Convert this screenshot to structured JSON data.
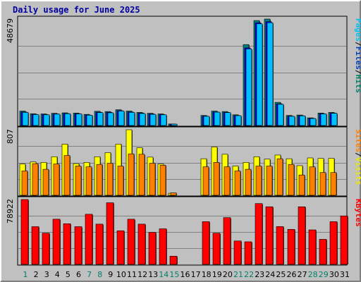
{
  "chart_data": {
    "type": "bar",
    "title": "Daily usage for June 2025",
    "categories": [
      "1",
      "2",
      "3",
      "4",
      "5",
      "6",
      "7",
      "8",
      "9",
      "10",
      "11",
      "12",
      "13",
      "14",
      "15",
      "16",
      "17",
      "18",
      "19",
      "20",
      "21",
      "22",
      "23",
      "24",
      "25",
      "26",
      "27",
      "28",
      "29",
      "30",
      "31"
    ],
    "weekend_days": [
      "1",
      "7",
      "8",
      "14",
      "15",
      "21",
      "22",
      "28",
      "29"
    ],
    "panels": [
      {
        "id": "pages-files-hits",
        "ymax_label": "48679",
        "ymax": 48679,
        "legend_text": [
          "Pages",
          "/",
          "Files",
          "/",
          "Hits"
        ],
        "legend_colors": [
          "#00c0f0",
          "#000000",
          "#0040c0",
          "#000000",
          "#00806a"
        ],
        "series": [
          {
            "name": "Hits",
            "color": "#008080",
            "values": [
              6600,
              5400,
              5300,
              5600,
              5800,
              5700,
              5100,
              6500,
              6400,
              7200,
              6600,
              6000,
              5600,
              5300,
              700,
              0,
              0,
              4600,
              6600,
              6400,
              4900,
              37000,
              48000,
              48679,
              10600,
              4600,
              4800,
              3500,
              5700,
              6000,
              0
            ]
          },
          {
            "name": "Files",
            "color": "#0000ff",
            "values": [
              6200,
              5100,
              5000,
              5300,
              5500,
              5400,
              4800,
              6100,
              6000,
              6800,
              6200,
              5700,
              5300,
              5000,
              600,
              0,
              0,
              4300,
              6200,
              6000,
              4600,
              35500,
              47000,
              47500,
              9900,
              4300,
              4500,
              3300,
              5400,
              5700,
              0
            ]
          },
          {
            "name": "Pages",
            "color": "#00c0ff",
            "values": [
              6000,
              5000,
              4900,
              5200,
              5400,
              5300,
              4700,
              5900,
              5800,
              6600,
              6000,
              5500,
              5100,
              4900,
              500,
              0,
              0,
              4200,
              6100,
              5900,
              4500,
              35000,
              46500,
              47000,
              9700,
              4200,
              4400,
              3200,
              5300,
              5600,
              0
            ]
          }
        ]
      },
      {
        "id": "visits-sites",
        "ymax_label": "807",
        "ymax": 807,
        "legend_text": [
          "Sites",
          "/",
          "Visits"
        ],
        "legend_colors": [
          "#ff8000",
          "#000000",
          "#e8e800"
        ],
        "series": [
          {
            "name": "Visits",
            "color": "#ffff00",
            "values": [
              385,
              410,
              405,
              475,
              630,
              390,
              405,
              475,
              525,
              630,
              807,
              585,
              470,
              385,
              25,
              0,
              0,
              450,
              595,
              505,
              360,
              405,
              475,
              445,
              495,
              450,
              365,
              460,
              455,
              455,
              0
            ]
          },
          {
            "name": "Sites",
            "color": "#ff8000",
            "values": [
              300,
              390,
              320,
              385,
              490,
              360,
              350,
              380,
              395,
              360,
              510,
              505,
              395,
              370,
              30,
              0,
              0,
              350,
              405,
              350,
              300,
              320,
              360,
              360,
              450,
              380,
              250,
              350,
              280,
              280,
              0
            ]
          }
        ]
      },
      {
        "id": "kbytes",
        "ymax_label": "78922",
        "ymax": 78922,
        "legend_text": [
          "KBytes"
        ],
        "legend_colors": [
          "#ff0000"
        ],
        "series": [
          {
            "name": "KBytes",
            "color": "#ff0000",
            "values": [
              78922,
              45900,
              38000,
              55000,
              49500,
              45900,
              61000,
              49000,
              75000,
              40900,
              55000,
              49000,
              39000,
              43300,
              10000,
              0,
              0,
              52000,
              38000,
              56900,
              28500,
              27500,
              74000,
              70100,
              46000,
              42600,
              70100,
              42000,
              30500,
              52000,
              59000
            ]
          }
        ]
      }
    ],
    "grid": true
  }
}
